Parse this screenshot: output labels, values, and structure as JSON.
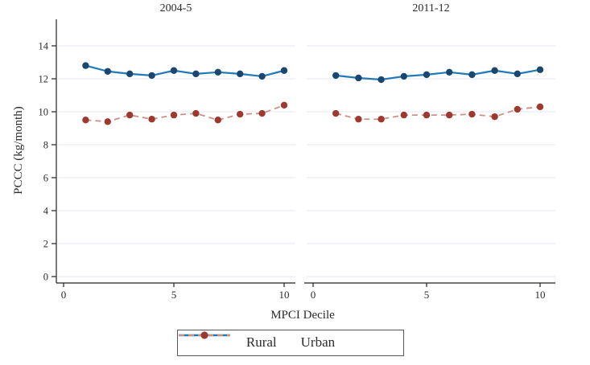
{
  "figure": {
    "y_axis_title": "PCCC (kg/month)",
    "x_axis_title": "MPCI Decile"
  },
  "legend": {
    "items": [
      {
        "label": "Rural"
      },
      {
        "label": "Urban"
      }
    ]
  },
  "colors": {
    "rural_line": "#207ab8",
    "rural_marker": "#1a476f",
    "urban_line": "#c99288",
    "urban_marker": "#9e392f",
    "gridline": "#e9ecf5",
    "axis": "#222222",
    "text": "#2b2b2b"
  },
  "chart_data": {
    "type": "line",
    "x": [
      1,
      2,
      3,
      4,
      5,
      6,
      7,
      8,
      9,
      10
    ],
    "xlabel": "MPCI Decile",
    "ylabel": "PCCC (kg/month)",
    "xlim": [
      -0.35,
      10.65
    ],
    "ylim": [
      0,
      15.6
    ],
    "xticks": [
      0,
      5,
      10
    ],
    "yticks": [
      0,
      2,
      4,
      6,
      8,
      10,
      12,
      14
    ],
    "grid": "horizontal",
    "legend_position": "bottom-center",
    "panels": [
      {
        "title": "2004-5",
        "series": [
          {
            "name": "Rural",
            "values": [
              12.8,
              12.45,
              12.3,
              12.2,
              12.5,
              12.3,
              12.4,
              12.3,
              12.15,
              12.5
            ]
          },
          {
            "name": "Urban",
            "values": [
              9.5,
              9.4,
              9.8,
              9.55,
              9.8,
              9.9,
              9.5,
              9.85,
              9.9,
              10.4
            ]
          }
        ]
      },
      {
        "title": "2011-12",
        "series": [
          {
            "name": "Rural",
            "values": [
              12.2,
              12.05,
              11.95,
              12.15,
              12.25,
              12.4,
              12.25,
              12.5,
              12.3,
              12.55
            ]
          },
          {
            "name": "Urban",
            "values": [
              9.9,
              9.55,
              9.55,
              9.8,
              9.8,
              9.8,
              9.85,
              9.7,
              10.15,
              10.3
            ]
          }
        ]
      }
    ],
    "series_styles": [
      {
        "name": "Rural",
        "line_color": "#207ab8",
        "marker_color": "#1a476f",
        "dash": null,
        "line_width": 2.2
      },
      {
        "name": "Urban",
        "line_color": "#c99288",
        "marker_color": "#9e392f",
        "dash": "7 5",
        "line_width": 1.8
      }
    ]
  }
}
